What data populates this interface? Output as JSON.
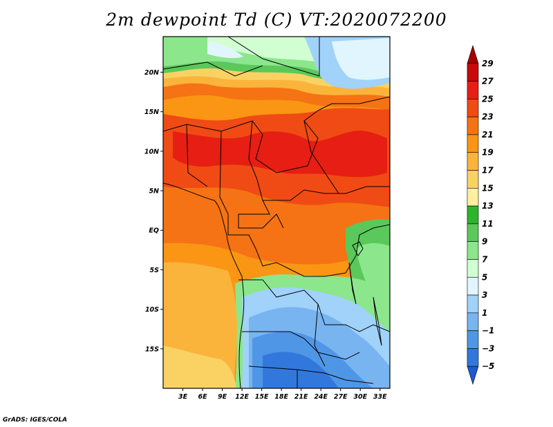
{
  "title": "2m dewpoint Td (C) VT:2020072200",
  "credit": "GrADS: IGES/COLA",
  "map": {
    "lon_range": [
      0,
      34.5
    ],
    "lat_range": [
      -20,
      24.5
    ],
    "lat_ticks": [
      {
        "value": 20,
        "label": "20N"
      },
      {
        "value": 15,
        "label": "15N"
      },
      {
        "value": 10,
        "label": "10N"
      },
      {
        "value": 5,
        "label": "5N"
      },
      {
        "value": 0,
        "label": "EQ"
      },
      {
        "value": -5,
        "label": "5S"
      },
      {
        "value": -10,
        "label": "10S"
      },
      {
        "value": -15,
        "label": "15S"
      }
    ],
    "lon_ticks": [
      {
        "value": 3,
        "label": "3E"
      },
      {
        "value": 6,
        "label": "6E"
      },
      {
        "value": 9,
        "label": "9E"
      },
      {
        "value": 12,
        "label": "12E"
      },
      {
        "value": 15,
        "label": "15E"
      },
      {
        "value": 18,
        "label": "18E"
      },
      {
        "value": 21,
        "label": "21E"
      },
      {
        "value": 24,
        "label": "24E"
      },
      {
        "value": 27,
        "label": "27E"
      },
      {
        "value": 30,
        "label": "30E"
      },
      {
        "value": 33,
        "label": "33E"
      }
    ]
  },
  "colorbar": {
    "labels": [
      "29",
      "27",
      "25",
      "23",
      "21",
      "19",
      "17",
      "15",
      "13",
      "11",
      "9",
      "7",
      "5",
      "3",
      "1",
      "−1",
      "−3",
      "−5"
    ],
    "colors": [
      "#a50000",
      "#c80a0a",
      "#e61e14",
      "#f04b14",
      "#f57314",
      "#fa9614",
      "#fab43c",
      "#fad264",
      "#fff0a0",
      "#2db42d",
      "#5ac85a",
      "#8ce68c",
      "#d2ffd2",
      "#e1f5ff",
      "#a0d2fa",
      "#78b4f0",
      "#5096e6",
      "#3278dc",
      "#1e5ad2"
    ]
  }
}
